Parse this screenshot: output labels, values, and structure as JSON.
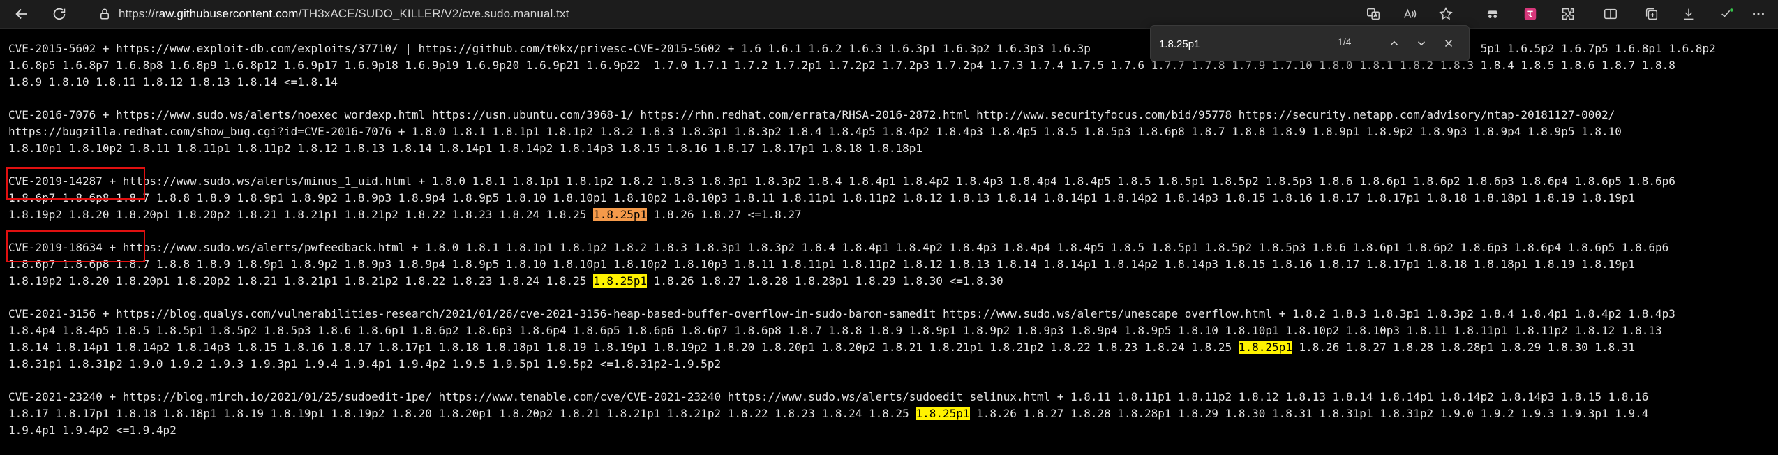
{
  "browser": {
    "url_scheme": "https://",
    "url_host": "raw.githubusercontent.com",
    "url_path": "/TH3xACE/SUDO_KILLER/V2/cve.sudo.manual.txt"
  },
  "find": {
    "query": "1.8.25p1",
    "count": "1/4"
  },
  "document": {
    "paragraphs": [
      {
        "lines": [
          [
            {
              "t": "CVE-2015-5602 + https://www.exploit-db.com/exploits/37710/ | https://github.com/t0kx/privesc-CVE-2015-5602 + 1.6 1.6.1 1.6.2 1.6.3 1.6.3p1 1.6.3p2 1.6.3p3 1.6.3p"
            },
            {
              "t": "                                                          ",
              "gap": true
            },
            {
              "t": "5p1 1.6.5p2 1.6.7p5 1.6.8p1 1.6.8p2"
            }
          ],
          [
            {
              "t": "1.6.8p5 1.6.8p7 1.6.8p8 1.6.8p9 1.6.8p12 1.6.9p17 1.6.9p18 1.6.9p19 1.6.9p20 1.6.9p21 1.6.9p22  1.7.0 1.7.1 1.7.2 1.7.2p1 1.7.2p2 1.7.2p3 1.7.2p4 1.7.3 1.7.4 1.7.5 1.7.6 1.7.7 1.7.8 1.7.9 1.7.10 1.8.0 1.8.1 1.8.2 1.8.3 1.8.4 1.8.5 1.8.6 1.8.7 1.8.8"
            }
          ],
          [
            {
              "t": "1.8.9 1.8.10 1.8.11 1.8.12 1.8.13 1.8.14 <=1.8.14"
            }
          ]
        ]
      },
      {
        "lines": [
          [
            {
              "t": "CVE-2016-7076 + https://www.sudo.ws/alerts/noexec_wordexp.html https://usn.ubuntu.com/3968-1/ https://rhn.redhat.com/errata/RHSA-2016-2872.html http://www.securityfocus.com/bid/95778 https://security.netapp.com/advisory/ntap-20181127-0002/"
            }
          ],
          [
            {
              "t": "https://bugzilla.redhat.com/show_bug.cgi?id=CVE-2016-7076 + 1.8.0 1.8.1 1.8.1p1 1.8.1p2 1.8.2 1.8.3 1.8.3p1 1.8.3p2 1.8.4 1.8.4p5 1.8.4p2 1.8.4p3 1.8.4p5 1.8.5 1.8.5p3 1.8.6p8 1.8.7 1.8.8 1.8.9 1.8.9p1 1.8.9p2 1.8.9p3 1.8.9p4 1.8.9p5 1.8.10"
            }
          ],
          [
            {
              "t": "1.8.10p1 1.8.10p2 1.8.11 1.8.11p1 1.8.11p2 1.8.12 1.8.13 1.8.14 1.8.14p1 1.8.14p2 1.8.14p3 1.8.15 1.8.16 1.8.17 1.8.17p1 1.8.18 1.8.18p1"
            }
          ]
        ]
      },
      {
        "lines": [
          [
            {
              "t": "CVE-2019-14287 + https://www.sudo.ws/alerts/minus_1_uid.html + 1.8.0 1.8.1 1.8.1p1 1.8.1p2 1.8.2 1.8.3 1.8.3p1 1.8.3p2 1.8.4 1.8.4p1 1.8.4p2 1.8.4p3 1.8.4p4 1.8.4p5 1.8.5 1.8.5p1 1.8.5p2 1.8.5p3 1.8.6 1.8.6p1 1.8.6p2 1.8.6p3 1.8.6p4 1.8.6p5 1.8.6p6"
            }
          ],
          [
            {
              "t": "1.8.6p7 1.8.6p8 1.8.7 1.8.8 1.8.9 1.8.9p1 1.8.9p2 1.8.9p3 1.8.9p4 1.8.9p5 1.8.10 1.8.10p1 1.8.10p2 1.8.10p3 1.8.11 1.8.11p1 1.8.11p2 1.8.12 1.8.13 1.8.14 1.8.14p1 1.8.14p2 1.8.14p3 1.8.15 1.8.16 1.8.17 1.8.17p1 1.8.18 1.8.18p1 1.8.19 1.8.19p1"
            }
          ],
          [
            {
              "t": "1.8.19p2 1.8.20 1.8.20p1 1.8.20p2 1.8.21 1.8.21p1 1.8.21p2 1.8.22 1.8.23 1.8.24 1.8.25 "
            },
            {
              "t": "1.8.25p1",
              "hl": "current"
            },
            {
              "t": " 1.8.26 1.8.27 <=1.8.27"
            }
          ]
        ]
      },
      {
        "lines": [
          [
            {
              "t": "CVE-2019-18634 + https://www.sudo.ws/alerts/pwfeedback.html + 1.8.0 1.8.1 1.8.1p1 1.8.1p2 1.8.2 1.8.3 1.8.3p1 1.8.3p2 1.8.4 1.8.4p1 1.8.4p2 1.8.4p3 1.8.4p4 1.8.4p5 1.8.5 1.8.5p1 1.8.5p2 1.8.5p3 1.8.6 1.8.6p1 1.8.6p2 1.8.6p3 1.8.6p4 1.8.6p5 1.8.6p6"
            }
          ],
          [
            {
              "t": "1.8.6p7 1.8.6p8 1.8.7 1.8.8 1.8.9 1.8.9p1 1.8.9p2 1.8.9p3 1.8.9p4 1.8.9p5 1.8.10 1.8.10p1 1.8.10p2 1.8.10p3 1.8.11 1.8.11p1 1.8.11p2 1.8.12 1.8.13 1.8.14 1.8.14p1 1.8.14p2 1.8.14p3 1.8.15 1.8.16 1.8.17 1.8.17p1 1.8.18 1.8.18p1 1.8.19 1.8.19p1"
            }
          ],
          [
            {
              "t": "1.8.19p2 1.8.20 1.8.20p1 1.8.20p2 1.8.21 1.8.21p1 1.8.21p2 1.8.22 1.8.23 1.8.24 1.8.25 "
            },
            {
              "t": "1.8.25p1",
              "hl": "match"
            },
            {
              "t": " 1.8.26 1.8.27 1.8.28 1.8.28p1 1.8.29 1.8.30 <=1.8.30"
            }
          ]
        ]
      },
      {
        "lines": [
          [
            {
              "t": "CVE-2021-3156 + https://blog.qualys.com/vulnerabilities-research/2021/01/26/cve-2021-3156-heap-based-buffer-overflow-in-sudo-baron-samedit https://www.sudo.ws/alerts/unescape_overflow.html + 1.8.2 1.8.3 1.8.3p1 1.8.3p2 1.8.4 1.8.4p1 1.8.4p2 1.8.4p3"
            }
          ],
          [
            {
              "t": "1.8.4p4 1.8.4p5 1.8.5 1.8.5p1 1.8.5p2 1.8.5p3 1.8.6 1.8.6p1 1.8.6p2 1.8.6p3 1.8.6p4 1.8.6p5 1.8.6p6 1.8.6p7 1.8.6p8 1.8.7 1.8.8 1.8.9 1.8.9p1 1.8.9p2 1.8.9p3 1.8.9p4 1.8.9p5 1.8.10 1.8.10p1 1.8.10p2 1.8.10p3 1.8.11 1.8.11p1 1.8.11p2 1.8.12 1.8.13"
            }
          ],
          [
            {
              "t": "1.8.14 1.8.14p1 1.8.14p2 1.8.14p3 1.8.15 1.8.16 1.8.17 1.8.17p1 1.8.18 1.8.18p1 1.8.19 1.8.19p1 1.8.19p2 1.8.20 1.8.20p1 1.8.20p2 1.8.21 1.8.21p1 1.8.21p2 1.8.22 1.8.23 1.8.24 1.8.25 "
            },
            {
              "t": "1.8.25p1",
              "hl": "match"
            },
            {
              "t": " 1.8.26 1.8.27 1.8.28 1.8.28p1 1.8.29 1.8.30 1.8.31"
            }
          ],
          [
            {
              "t": "1.8.31p1 1.8.31p2 1.9.0 1.9.2 1.9.3 1.9.3p1 1.9.4 1.9.4p1 1.9.4p2 1.9.5 1.9.5p1 1.9.5p2 <=1.8.31p2-1.9.5p2"
            }
          ]
        ]
      },
      {
        "lines": [
          [
            {
              "t": "CVE-2021-23240 + https://blog.mirch.io/2021/01/25/sudoedit-1pe/ https://www.tenable.com/cve/CVE-2021-23240 https://www.sudo.ws/alerts/sudoedit_selinux.html + 1.8.11 1.8.11p1 1.8.11p2 1.8.12 1.8.13 1.8.14 1.8.14p1 1.8.14p2 1.8.14p3 1.8.15 1.8.16"
            }
          ],
          [
            {
              "t": "1.8.17 1.8.17p1 1.8.18 1.8.18p1 1.8.19 1.8.19p1 1.8.19p2 1.8.20 1.8.20p1 1.8.20p2 1.8.21 1.8.21p1 1.8.21p2 1.8.22 1.8.23 1.8.24 1.8.25 "
            },
            {
              "t": "1.8.25p1",
              "hl": "match"
            },
            {
              "t": " 1.8.26 1.8.27 1.8.28 1.8.28p1 1.8.29 1.8.30 1.8.31 1.8.31p1 1.8.31p2 1.9.0 1.9.2 1.9.3 1.9.3p1 1.9.4"
            }
          ],
          [
            {
              "t": "1.9.4p1 1.9.4p2 <=1.9.4p2"
            }
          ]
        ]
      }
    ]
  },
  "colors": {
    "current_match": "#f59a4a",
    "other_match": "#fff200",
    "annotation_box": "#e01010"
  },
  "icons": {
    "toolbar": [
      "back-icon",
      "refresh-icon",
      "lock-icon"
    ],
    "address_bar": [
      "translate-icon",
      "read-aloud-icon",
      "favorite-star-icon"
    ],
    "extensions": [
      "spy-extension-icon",
      "translate-extension-icon",
      "extensions-puzzle-icon",
      "split-screen-icon",
      "collections-icon",
      "download-icon",
      "browser-essentials-icon",
      "more-menu-icon"
    ],
    "find": [
      "previous-match-icon",
      "next-match-icon",
      "close-find-icon"
    ]
  }
}
